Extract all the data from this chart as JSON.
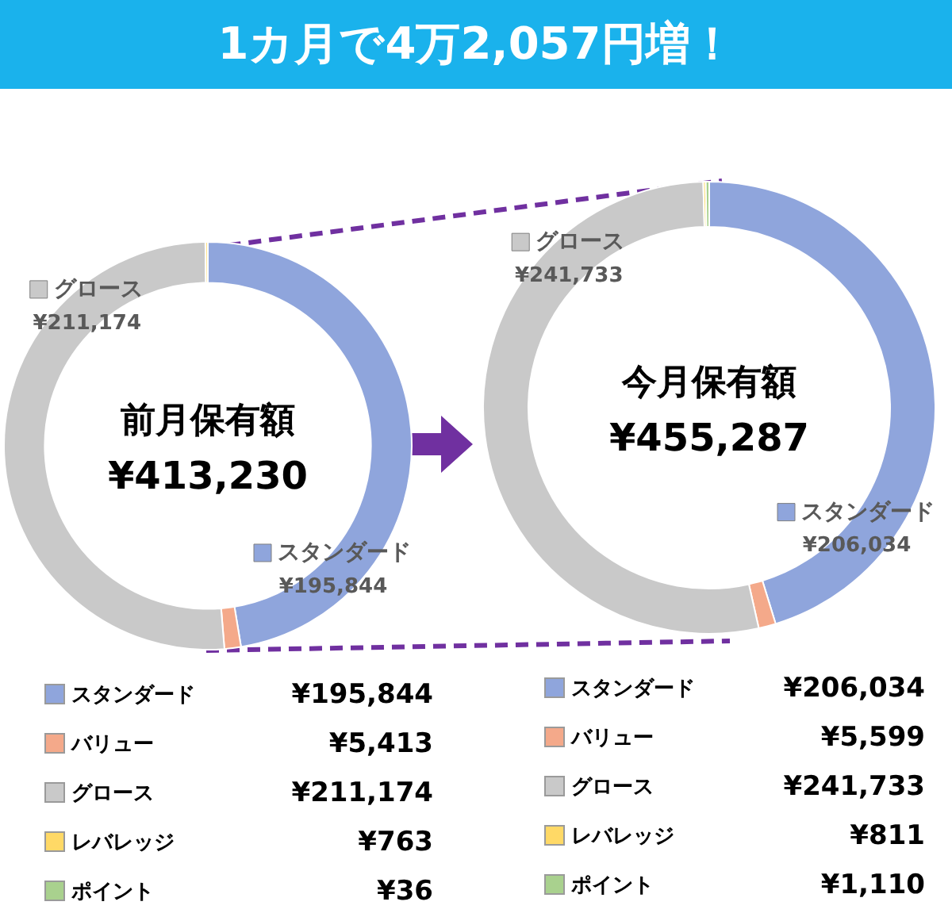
{
  "chart_data": [
    {
      "type": "donut",
      "title": "1カ月で4万2,057円増！",
      "annotations": [
        "前月保有額",
        "¥413,230"
      ],
      "categories": [
        "スタンダード",
        "バリュー",
        "グロース",
        "レバレッジ",
        "ポイント"
      ],
      "values": [
        195844,
        5413,
        211174,
        763,
        36
      ],
      "value_labels": [
        "¥195,844",
        "¥5,413",
        "¥211,174",
        "¥763",
        "¥36"
      ],
      "colors": [
        "#8fa5dc",
        "#f4a98a",
        "#c9c9c9",
        "#ffd966",
        "#a9d18e"
      ],
      "legend": "bottom"
    },
    {
      "type": "donut",
      "annotations": [
        "今月保有額",
        "¥455,287"
      ],
      "categories": [
        "スタンダード",
        "バリュー",
        "グロース",
        "レバレッジ",
        "ポイント"
      ],
      "values": [
        206034,
        5599,
        241733,
        811,
        1110
      ],
      "value_labels": [
        "¥206,034",
        "¥5,599",
        "¥241,733",
        "¥811",
        "¥1,110"
      ],
      "colors": [
        "#8fa5dc",
        "#f4a98a",
        "#c9c9c9",
        "#ffd966",
        "#a9d18e"
      ],
      "legend": "bottom"
    }
  ]
}
